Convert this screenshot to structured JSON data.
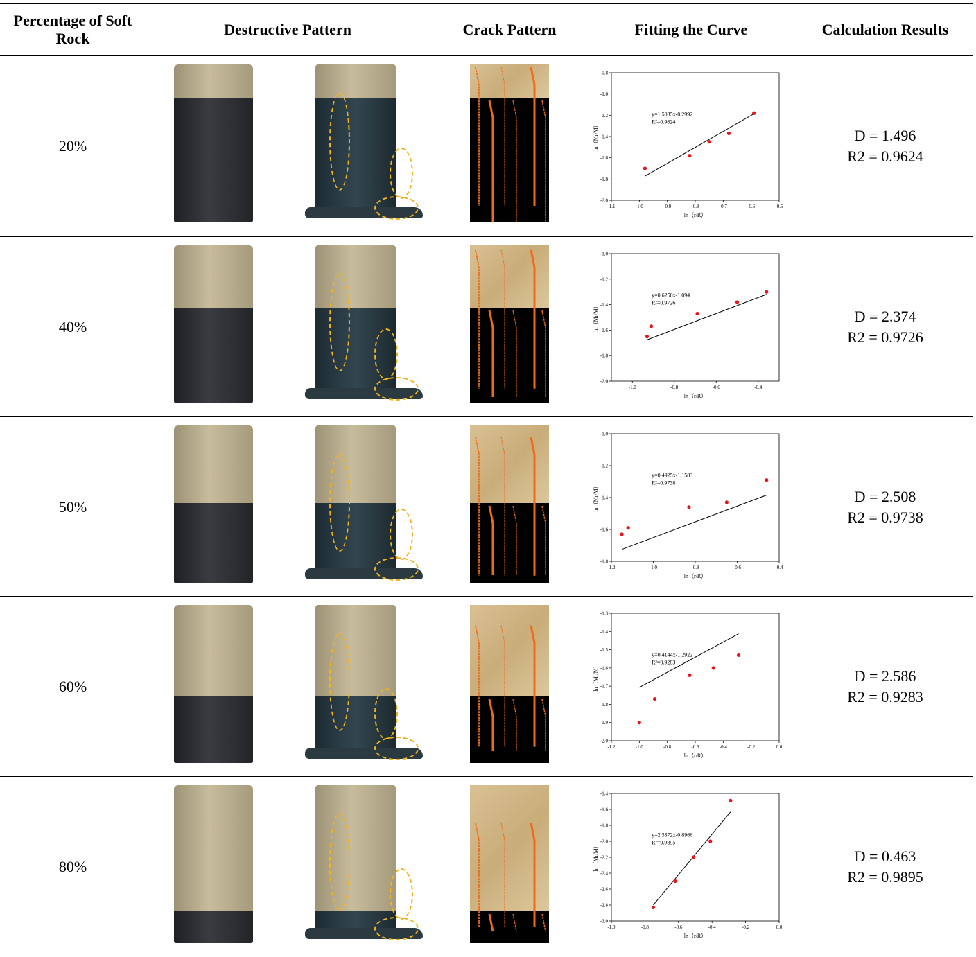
{
  "table": {
    "header": [
      "Percentage of Soft Rock",
      "Destructive Pattern",
      "Crack Pattern",
      "Fitting the Curve",
      "Calculation Results"
    ],
    "rows": [
      {
        "percentage": "20%",
        "chart": {
          "type": "scatter",
          "x_label": "ln（r/R）",
          "y_label": "ln（Mr/M）",
          "color": "#e8141b",
          "x": [
            -0.98,
            -0.82,
            -0.75,
            -0.68,
            -0.59
          ],
          "values": [
            -1.7,
            -1.58,
            -1.45,
            -1.37,
            -1.18
          ],
          "fit": {
            "label": "y=1.5035x-0.2992",
            "slope": 1.5035,
            "intercept": -0.2992
          },
          "r2_label": "R²=0.9624",
          "xlim": [
            -1.1,
            -0.5
          ],
          "xticks": [
            -1.1,
            {
              "value": -1,
              "label": "-1.0"
            },
            -0.9,
            -0.8,
            -0.7,
            -0.6,
            -0.5
          ],
          "ylim": [
            -2.0,
            -0.8
          ],
          "yticks": [
            {
              "value": -2,
              "label": "-2.0"
            },
            -1.8,
            -1.6,
            -1.4,
            -1.2,
            {
              "value": -1,
              "label": "-1.0"
            },
            -0.8
          ]
        },
        "result": [
          "D = 1.496",
          "R2 = 0.9624"
        ]
      },
      {
        "percentage": "40%",
        "chart": {
          "type": "scatter",
          "x_label": "ln（r/R）",
          "y_label": "ln（Mr/M）",
          "color": "#e8141b",
          "x": [
            -0.93,
            -0.91,
            -0.69,
            -0.5,
            -0.36
          ],
          "values": [
            -1.65,
            -1.57,
            -1.47,
            -1.38,
            -1.3
          ],
          "fit": {
            "label": "y=0.6258x-1.094",
            "slope": 0.6258,
            "intercept": -1.094
          },
          "r2_label": "R²=0.9726",
          "xlim": [
            -1.1,
            -0.3
          ],
          "xticks": [
            {
              "value": -1,
              "label": "-1.0"
            },
            -0.8,
            -0.6,
            -0.4
          ],
          "ylim": [
            -2.0,
            -1.0
          ],
          "yticks": [
            {
              "value": -2,
              "label": "-2.0"
            },
            -1.8,
            -1.6,
            -1.4,
            -1.2,
            {
              "value": -1,
              "label": "-1.0"
            }
          ]
        },
        "result": [
          "D = 2.374",
          "R2 = 0.9726"
        ]
      },
      {
        "percentage": "50%",
        "chart": {
          "type": "scatter",
          "x_label": "ln（r/R）",
          "y_label": "ln（Mr/M）",
          "color": "#e8141b",
          "x": [
            -1.15,
            -1.12,
            -0.83,
            -0.65,
            -0.46
          ],
          "values": [
            -1.63,
            -1.59,
            -1.46,
            -1.43,
            -1.29
          ],
          "fit": {
            "label": "y=0.4925x-1.1583",
            "slope": 0.4925,
            "intercept": -1.1583
          },
          "r2_label": "R²=0.9738",
          "xlim": [
            -1.2,
            -0.4
          ],
          "xticks": [
            -1.2,
            {
              "value": -1,
              "label": "-1.0"
            },
            -0.8,
            -0.6,
            -0.4
          ],
          "ylim": [
            -1.8,
            -1.0
          ],
          "yticks": [
            -1.8,
            -1.6,
            -1.4,
            -1.2,
            {
              "value": -1,
              "label": "-1.0"
            }
          ]
        },
        "result": [
          "D = 2.508",
          "R2 = 0.9738"
        ]
      },
      {
        "percentage": "60%",
        "chart": {
          "type": "scatter",
          "x_label": "ln（r/R）",
          "y_label": "ln（Mr/M）",
          "color": "#e8141b",
          "x": [
            -1.0,
            -0.89,
            -0.64,
            -0.47,
            -0.29
          ],
          "values": [
            -1.9,
            -1.77,
            -1.64,
            -1.6,
            -1.53
          ],
          "fit": {
            "label": "y=0.4144x-1.2922",
            "slope": 0.4144,
            "intercept": -1.2922
          },
          "r2_label": "R²=0.9283",
          "xlim": [
            -1.2,
            0.0
          ],
          "xticks": [
            -1.2,
            {
              "value": -1,
              "label": "-1.0"
            },
            -0.8,
            -0.6,
            -0.4,
            -0.2,
            {
              "value": 0,
              "label": "0.0"
            }
          ],
          "ylim": [
            -2.0,
            -1.3
          ],
          "yticks": [
            {
              "value": -2,
              "label": "-2.0"
            },
            -1.9,
            -1.8,
            -1.7,
            -1.6,
            -1.5,
            -1.4,
            -1.3
          ]
        },
        "result": [
          "D = 2.586",
          "R2 = 0.9283"
        ]
      },
      {
        "percentage": "80%",
        "chart": {
          "type": "scatter",
          "x_label": "ln（r/R）",
          "y_label": "ln（Mr/M）",
          "color": "#e8141b",
          "x": [
            -0.75,
            -0.62,
            -0.51,
            -0.41,
            -0.29
          ],
          "values": [
            -2.83,
            -2.5,
            -2.2,
            -2.0,
            -1.49
          ],
          "fit": {
            "label": "y=2.5372x-0.8966",
            "slope": 2.5372,
            "intercept": -0.8966
          },
          "r2_label": "R²=0.9895",
          "xlim": [
            -1.0,
            0.0
          ],
          "xticks": [
            {
              "value": -1,
              "label": "-1.0"
            },
            -0.8,
            -0.6,
            -0.4,
            -0.2,
            {
              "value": 0,
              "label": "0.0"
            }
          ],
          "ylim": [
            -3.0,
            -1.4
          ],
          "yticks": [
            {
              "value": -3,
              "label": "-3.0"
            },
            -2.8,
            -2.6,
            -2.4,
            -2.2,
            {
              "value": -2,
              "label": "-2.0"
            },
            -1.8,
            -1.6,
            -1.4
          ]
        },
        "result": [
          "D = 0.463",
          "R2 = 0.9895"
        ]
      }
    ]
  }
}
